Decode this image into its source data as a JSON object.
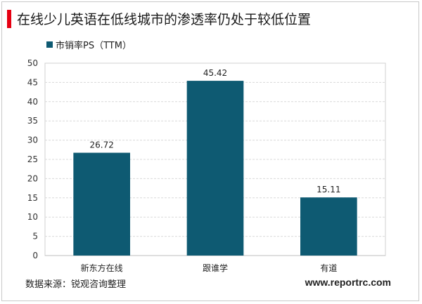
{
  "header": {
    "title": "在线少儿英语在低线城市的渗透率仍处于较低位置",
    "accent_color": "#e60012"
  },
  "footer": {
    "source": "数据来源：锐观咨询整理",
    "url": "www.reportrc.com"
  },
  "chart_data": {
    "type": "bar",
    "categories": [
      "新东方在线",
      "跟谁学",
      "有道"
    ],
    "series": [
      {
        "name": "市销率PS（TTM）",
        "values": [
          26.72,
          45.42,
          15.11
        ],
        "color": "#0e5a72"
      }
    ],
    "data_labels": [
      "26.72",
      "45.42",
      "15.11"
    ],
    "yticks": [
      "0",
      "5",
      "10",
      "15",
      "20",
      "25",
      "30",
      "35",
      "40",
      "45",
      "50"
    ],
    "ylim": [
      0,
      50
    ],
    "grid": true,
    "legend_position": "top-left"
  }
}
